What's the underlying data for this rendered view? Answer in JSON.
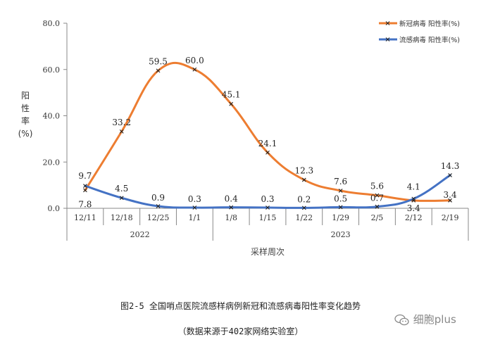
{
  "chart_data": {
    "type": "line",
    "categories": [
      "12/11",
      "12/18",
      "12/25",
      "1/1",
      "1/8",
      "1/15",
      "1/22",
      "1/29",
      "2/5",
      "2/12",
      "2/19"
    ],
    "years": [
      {
        "label": "2022",
        "from": 0,
        "to": 3
      },
      {
        "label": "2023",
        "from": 4,
        "to": 10
      }
    ],
    "series": [
      {
        "name": "新冠病毒 阳性率(%)",
        "color": "#ED7D31",
        "values": [
          7.8,
          33.2,
          59.5,
          60.0,
          45.1,
          24.1,
          12.3,
          7.6,
          5.6,
          3.4,
          3.4
        ],
        "labels": [
          "7.8",
          "33.2",
          "59.5",
          "60.0",
          "45.1",
          "24.1",
          "12.3",
          "7.6",
          "5.6",
          "3.4",
          "3.4"
        ]
      },
      {
        "name": "流感病毒 阳性率(%)",
        "color": "#4472C4",
        "values": [
          9.7,
          4.5,
          0.9,
          0.3,
          0.4,
          0.3,
          0.2,
          0.5,
          0.7,
          4.1,
          14.3
        ],
        "labels": [
          "9.7",
          "4.5",
          "0.9",
          "0.3",
          "0.4",
          "0.3",
          "0.2",
          "0.5",
          "0.7",
          "4.1",
          "14.3"
        ]
      }
    ],
    "ylabel": "阳性率(%)",
    "xlabel": "采样周次",
    "ylim": [
      0,
      80
    ],
    "yticks": [
      "0.0",
      "20.0",
      "40.0",
      "60.0",
      "80.0"
    ],
    "legend_position": "top-right",
    "grid": false
  },
  "caption": {
    "title": "图2-5 全国哨点医院流感样病例新冠和流感病毒阳性率变化趋势",
    "source": "（数据来源于402家网络实验室）"
  },
  "watermark": "细胞plus"
}
